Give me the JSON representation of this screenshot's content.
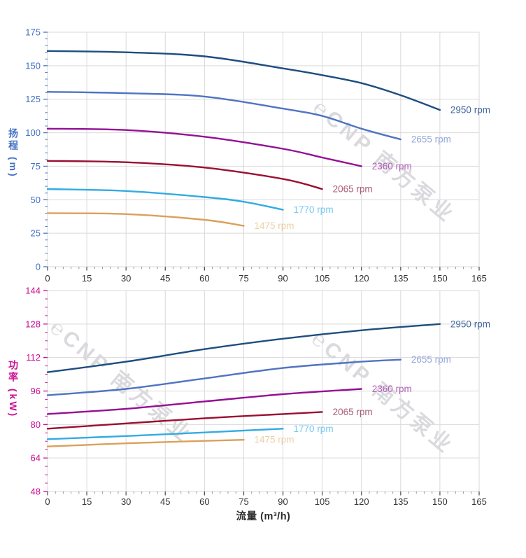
{
  "watermark": {
    "text": "℮CNP 南方泵业"
  },
  "colors": {
    "grid": "#d9d9d9",
    "plot_border": "#d9d9d9",
    "x_tick_major": "#555555",
    "x_tick_minor": "#999999",
    "x_tick_label": "#333333",
    "head_axis": "#4472c4",
    "power_axis": "#cc0e94"
  },
  "chart_data": [
    {
      "type": "line",
      "title": "",
      "xlabel": "",
      "ylabel": "扬程 (m)",
      "xlim": [
        0,
        165
      ],
      "ylim": [
        0,
        175
      ],
      "xticks": [
        0,
        15,
        30,
        45,
        60,
        75,
        90,
        105,
        120,
        135,
        150,
        165
      ],
      "yticks": [
        0,
        25,
        50,
        75,
        100,
        125,
        150,
        175
      ],
      "x_minor_step": 3,
      "y_minor_step": 5,
      "grid": true,
      "legend_position": "end-of-line labels",
      "axis_color": "#4472c4",
      "series": [
        {
          "name": "2950 rpm",
          "color": "#1d4e7e",
          "label_color": "#40679b",
          "x": [
            0,
            30,
            60,
            90,
            105,
            120,
            135,
            150
          ],
          "y": [
            161,
            160,
            157,
            148,
            143,
            137,
            128,
            117
          ]
        },
        {
          "name": "2655 rpm",
          "color": "#4f74c2",
          "label_color": "#93a7da",
          "x": [
            0,
            30,
            60,
            90,
            105,
            120,
            135
          ],
          "y": [
            130.5,
            129.5,
            127,
            118,
            112.5,
            103,
            95
          ]
        },
        {
          "name": "2360 rpm",
          "color": "#950f94",
          "label_color": "#b55fb8",
          "x": [
            0,
            30,
            60,
            90,
            105,
            120
          ],
          "y": [
            103,
            102,
            97,
            88,
            81.5,
            75
          ]
        },
        {
          "name": "2065 rpm",
          "color": "#991031",
          "label_color": "#ac5c76",
          "x": [
            0,
            30,
            60,
            90,
            105
          ],
          "y": [
            79,
            78,
            74,
            65.5,
            58
          ]
        },
        {
          "name": "1770 rpm",
          "color": "#33abe3",
          "label_color": "#74c9f0",
          "x": [
            0,
            30,
            60,
            75,
            90
          ],
          "y": [
            58,
            56.5,
            52,
            48.5,
            42.5
          ]
        },
        {
          "name": "1475 rpm",
          "color": "#dba05c",
          "label_color": "#e9d0a7",
          "x": [
            0,
            30,
            60,
            75
          ],
          "y": [
            40,
            39.3,
            35,
            30.5
          ]
        }
      ]
    },
    {
      "type": "line",
      "title": "",
      "xlabel": "流量 (m³/h)",
      "ylabel": "功率 (kW)",
      "xlim": [
        0,
        165
      ],
      "ylim": [
        48,
        144
      ],
      "xticks": [
        0,
        15,
        30,
        45,
        60,
        75,
        90,
        105,
        120,
        135,
        150,
        165
      ],
      "yticks": [
        48,
        64,
        80,
        96,
        112,
        128,
        144
      ],
      "x_minor_step": 3,
      "y_minor_step": 4,
      "grid": true,
      "legend_position": "end-of-line labels",
      "axis_color": "#cc0e94",
      "series": [
        {
          "name": "2950 rpm",
          "color": "#1d4e7e",
          "label_color": "#40679b",
          "x": [
            0,
            30,
            60,
            90,
            120,
            150
          ],
          "y": [
            105,
            110,
            116,
            121,
            125,
            128
          ]
        },
        {
          "name": "2655 rpm",
          "color": "#4f74c2",
          "label_color": "#93a7da",
          "x": [
            0,
            30,
            60,
            90,
            120,
            135
          ],
          "y": [
            94,
            97,
            102,
            107,
            110,
            111
          ]
        },
        {
          "name": "2360 rpm",
          "color": "#950f94",
          "label_color": "#b55fb8",
          "x": [
            0,
            30,
            60,
            90,
            120
          ],
          "y": [
            85,
            87.5,
            91,
            94.5,
            97
          ]
        },
        {
          "name": "2065 rpm",
          "color": "#991031",
          "label_color": "#ac5c76",
          "x": [
            0,
            30,
            60,
            90,
            105
          ],
          "y": [
            78,
            80.5,
            83,
            85,
            86
          ]
        },
        {
          "name": "1770 rpm",
          "color": "#33abe3",
          "label_color": "#74c9f0",
          "x": [
            0,
            30,
            60,
            90
          ],
          "y": [
            73,
            74.5,
            76.2,
            78
          ]
        },
        {
          "name": "1475 rpm",
          "color": "#dba05c",
          "label_color": "#e9d0a7",
          "x": [
            0,
            30,
            60,
            75
          ],
          "y": [
            69.5,
            71,
            72.2,
            72.7
          ]
        }
      ]
    }
  ]
}
